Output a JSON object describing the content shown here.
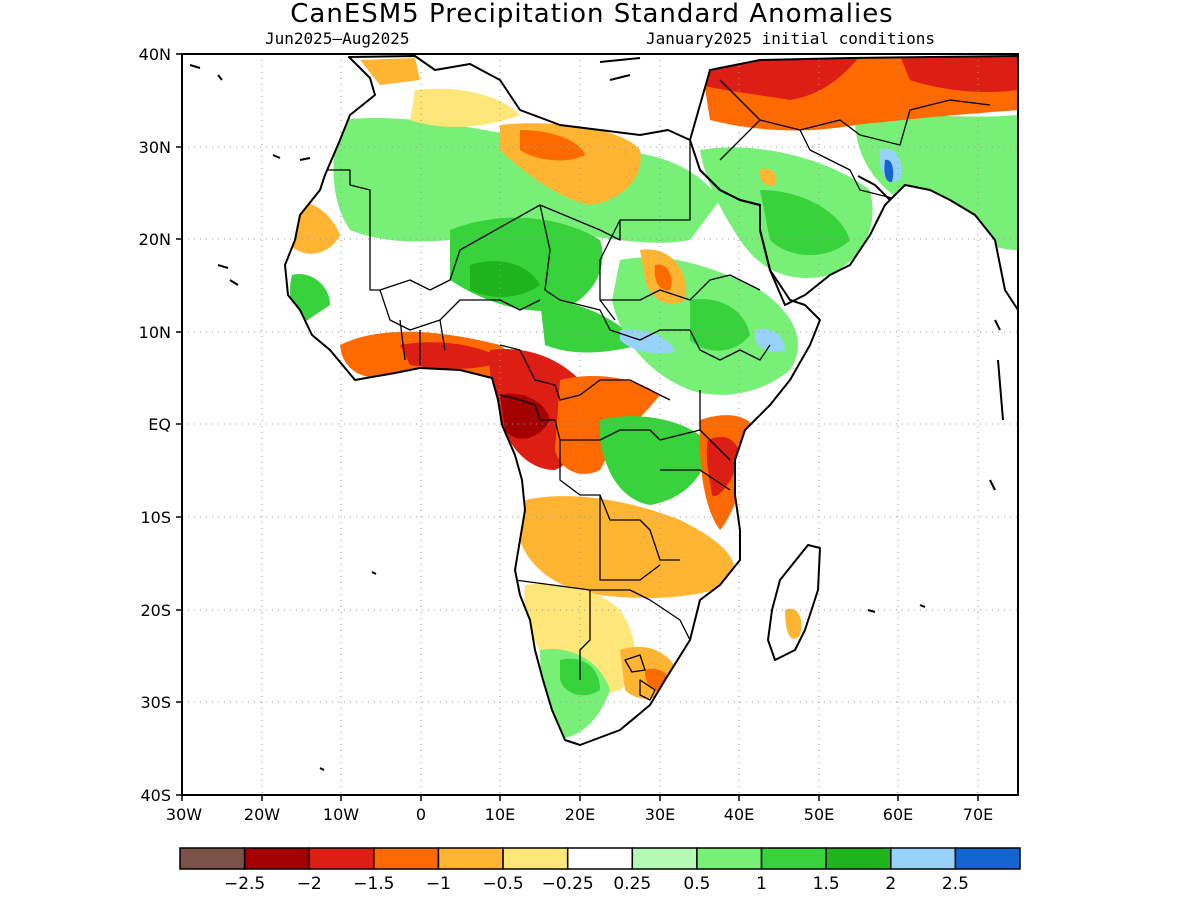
{
  "title": "CanESM5 Precipitation Standard Anomalies",
  "period": "Jun2025–Aug2025",
  "init": "January2025 initial conditions",
  "lat_ticks": [
    "40N",
    "30N",
    "20N",
    "10N",
    "EQ",
    "10S",
    "20S",
    "30S",
    "40S"
  ],
  "lon_ticks": [
    "30W",
    "20W",
    "10W",
    "0",
    "10E",
    "20E",
    "30E",
    "40E",
    "50E",
    "60E",
    "70E"
  ],
  "colorbar": {
    "colors": [
      "#7b5247",
      "#a50000",
      "#dc1e14",
      "#ff6a00",
      "#ffb432",
      "#ffe678",
      "#ffffff",
      "#b4fab4",
      "#78f078",
      "#37d23c",
      "#1eb41e",
      "#96d2fa",
      "#1464d2"
    ],
    "labels": [
      "−2.5",
      "−2",
      "−1.5",
      "−1",
      "−0.5",
      "−0.25",
      "0.25",
      "0.5",
      "1",
      "1.5",
      "2",
      "2.5"
    ]
  },
  "map_extent": {
    "lon": [
      -30,
      75
    ],
    "lat": [
      -40,
      40
    ]
  }
}
